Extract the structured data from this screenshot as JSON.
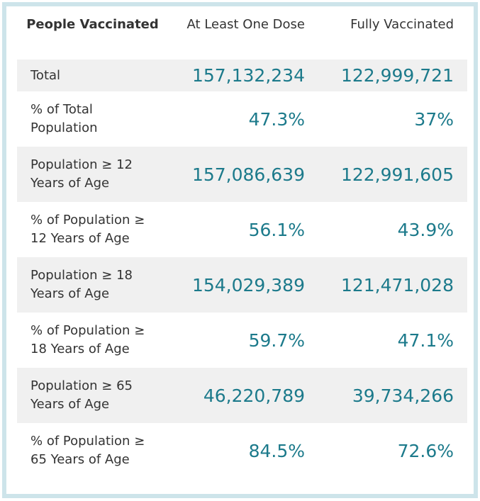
{
  "header": {
    "col1": "People Vaccinated",
    "col2": "At Least One Dose",
    "col3": "Fully Vaccinated"
  },
  "rows": [
    {
      "label": "Total",
      "at_least_one": "157,132,234",
      "fully": "122,999,721"
    },
    {
      "label": "% of Total Population",
      "at_least_one": "47.3%",
      "fully": "37%"
    },
    {
      "label": "Population ≥ 12 Years of Age",
      "at_least_one": "157,086,639",
      "fully": "122,991,605"
    },
    {
      "label": "% of Population ≥ 12 Years of Age",
      "at_least_one": "56.1%",
      "fully": "43.9%"
    },
    {
      "label": "Population ≥ 18 Years of Age",
      "at_least_one": "154,029,389",
      "fully": "121,471,028"
    },
    {
      "label": "% of Population ≥ 18 Years of Age",
      "at_least_one": "59.7%",
      "fully": "47.1%"
    },
    {
      "label": "Population ≥ 65 Years of Age",
      "at_least_one": "46,220,789",
      "fully": "39,734,266"
    },
    {
      "label": "% of Population ≥ 65 Years of Age",
      "at_least_one": "84.5%",
      "fully": "72.6%"
    }
  ],
  "colors": {
    "frame": "#cde4ea",
    "shaded_row": "#f0f0f0",
    "number_text": "#1c7a8b",
    "label_text": "#333333"
  }
}
